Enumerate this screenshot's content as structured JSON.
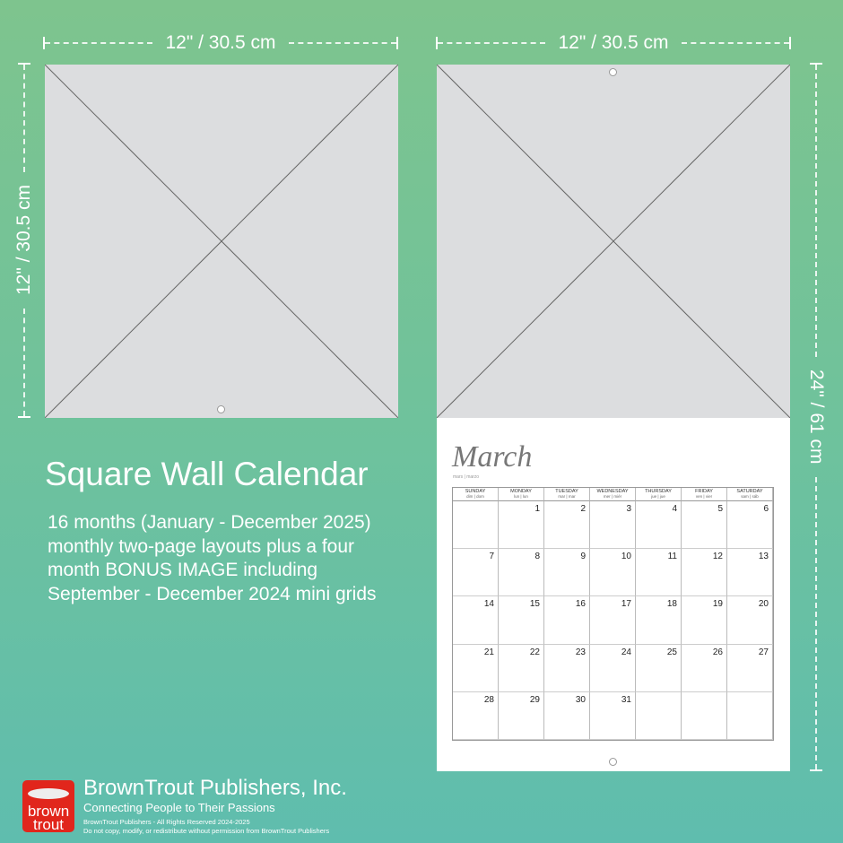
{
  "dimensions": {
    "left_width": "12\" / 30.5 cm",
    "right_width": "12\" / 30.5 cm",
    "left_height": "12\" / 30.5 cm",
    "right_height": "24\" / 61 cm"
  },
  "product": {
    "title": "Square Wall Calendar",
    "description": [
      "16 months (January - December 2025)",
      "monthly two-page layouts plus a four",
      "month BONUS IMAGE including",
      "September - December 2024 mini grids"
    ]
  },
  "calendar": {
    "month": "March",
    "month_sub": "mars | marzo",
    "days": [
      {
        "name": "SUNDAY",
        "sub": "dim | dom"
      },
      {
        "name": "MONDAY",
        "sub": "lun | lun"
      },
      {
        "name": "TUESDAY",
        "sub": "mar | mar"
      },
      {
        "name": "WEDNESDAY",
        "sub": "mer | miér"
      },
      {
        "name": "THURSDAY",
        "sub": "jue | jue"
      },
      {
        "name": "FRIDAY",
        "sub": "ven | vier"
      },
      {
        "name": "SATURDAY",
        "sub": "sam | sáb"
      }
    ],
    "cells": [
      "",
      "1",
      "2",
      "3",
      "4",
      "5",
      "6",
      "7",
      "8",
      "9",
      "10",
      "11",
      "12",
      "13",
      "14",
      "15",
      "16",
      "17",
      "18",
      "19",
      "20",
      "21",
      "22",
      "23",
      "24",
      "25",
      "26",
      "27",
      "28",
      "29",
      "30",
      "31",
      "",
      "",
      ""
    ]
  },
  "footer": {
    "logo_text": [
      "brown",
      "trout"
    ],
    "company": "BrownTrout Publishers, Inc.",
    "tagline": "Connecting People to Their Passions",
    "rights": "BrownTrout Publishers - All Rights Reserved 2024-2025",
    "notice": "Do not copy, modify, or redistribute without permission from BrownTrout Publishers"
  },
  "colors": {
    "brand_red": "#e1261c",
    "placeholder_gray": "#dcdddf"
  }
}
